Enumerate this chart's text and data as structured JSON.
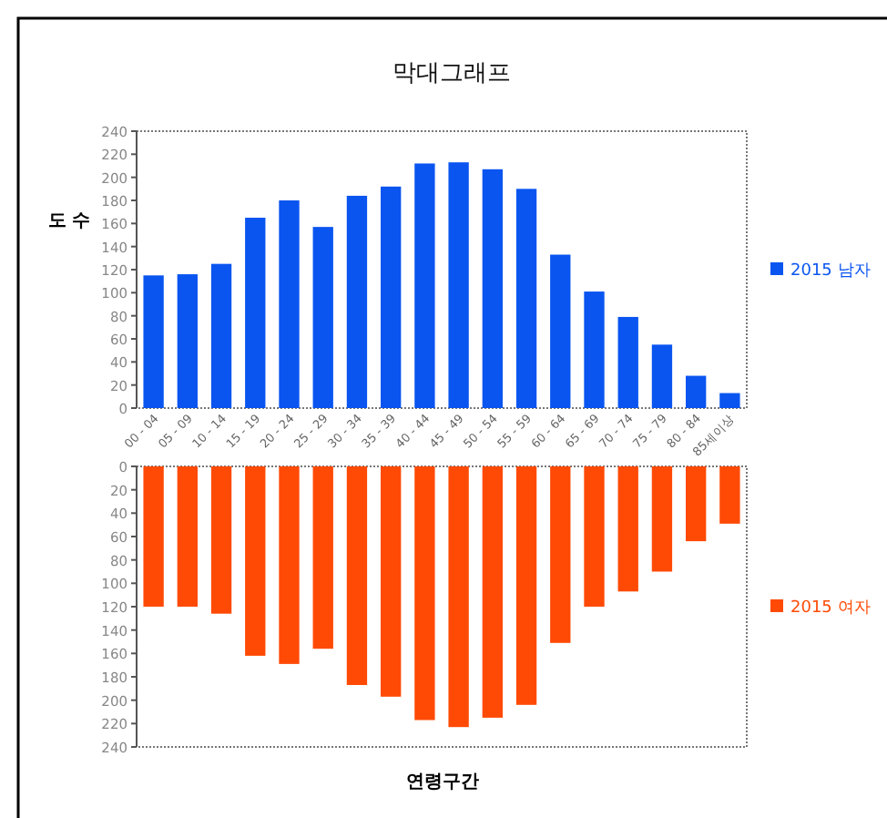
{
  "chart_data": [
    {
      "type": "bar",
      "title": "막대그래프",
      "ylabel": "도 수",
      "categories": [
        "00 - 04",
        "05 - 09",
        "10 - 14",
        "15 - 19",
        "20 - 24",
        "25 - 29",
        "30 - 34",
        "35 - 39",
        "40 - 44",
        "45 - 49",
        "50 - 54",
        "55 - 59",
        "60 - 64",
        "65 - 69",
        "70 - 74",
        "75 - 79",
        "80 - 84",
        "85세이상"
      ],
      "series": [
        {
          "name": "2015 남자",
          "color": "#0a55f0",
          "values": [
            115,
            116,
            125,
            165,
            180,
            157,
            184,
            192,
            212,
            213,
            207,
            190,
            133,
            101,
            79,
            55,
            28,
            13
          ]
        }
      ],
      "ylim": [
        0,
        240
      ],
      "yticks": [
        0,
        20,
        40,
        60,
        80,
        100,
        120,
        140,
        160,
        180,
        200,
        220,
        240
      ],
      "legend": "right"
    },
    {
      "type": "bar",
      "xlabel": "연령구간",
      "categories": [
        null,
        null,
        null,
        null,
        null,
        null,
        null,
        null,
        null,
        null,
        null,
        null,
        null,
        null,
        null,
        null,
        null,
        null
      ],
      "series": [
        {
          "name": "2015 여자",
          "color": "#ff4a05",
          "values": [
            120,
            120,
            126,
            162,
            169,
            156,
            187,
            197,
            217,
            223,
            215,
            204,
            151,
            120,
            107,
            90,
            64,
            49
          ]
        }
      ],
      "ylim": [
        240,
        0
      ],
      "yticks": [
        0,
        20,
        40,
        60,
        80,
        100,
        120,
        140,
        160,
        180,
        200,
        220,
        240
      ],
      "legend": "right"
    }
  ]
}
